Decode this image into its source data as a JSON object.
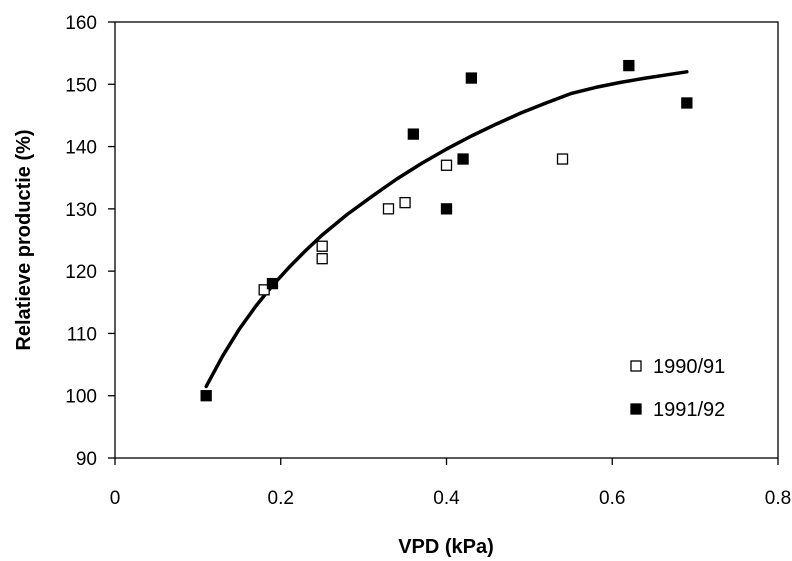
{
  "chart_data": {
    "type": "scatter",
    "xlabel": "VPD (kPa)",
    "ylabel": "Relatieve productie (%)",
    "xlim": [
      0,
      0.8
    ],
    "ylim": [
      90,
      160
    ],
    "x_ticks": [
      0,
      0.2,
      0.4,
      0.6,
      0.8
    ],
    "x_tick_labels": [
      "0",
      "0.2",
      "0.4",
      "0.6",
      "0.8"
    ],
    "y_ticks": [
      90,
      100,
      110,
      120,
      130,
      140,
      150,
      160
    ],
    "y_tick_labels": [
      "90",
      "100",
      "110",
      "120",
      "130",
      "140",
      "150",
      "160"
    ],
    "grid": false,
    "legend_position": "bottom-right",
    "series": [
      {
        "name": "1990/91",
        "marker": "open-square",
        "color": "#000000",
        "x": [
          0.18,
          0.25,
          0.25,
          0.33,
          0.35,
          0.4,
          0.54
        ],
        "y": [
          117,
          122,
          124,
          130,
          131,
          137,
          138
        ]
      },
      {
        "name": "1991/92",
        "marker": "filled-square",
        "color": "#000000",
        "x": [
          0.11,
          0.19,
          0.36,
          0.4,
          0.42,
          0.43,
          0.62,
          0.69
        ],
        "y": [
          100,
          118,
          142,
          130,
          138,
          151,
          153,
          147
        ]
      }
    ],
    "trend_line": {
      "type": "fitted-curve",
      "color": "#000000",
      "x": [
        0.11,
        0.13,
        0.15,
        0.17,
        0.19,
        0.21,
        0.23,
        0.25,
        0.28,
        0.31,
        0.34,
        0.37,
        0.4,
        0.43,
        0.46,
        0.49,
        0.52,
        0.55,
        0.58,
        0.61,
        0.64,
        0.67,
        0.69
      ],
      "y": [
        101.5,
        106.4,
        110.7,
        114.4,
        117.7,
        120.6,
        123.3,
        125.8,
        129.1,
        132.0,
        134.8,
        137.3,
        139.6,
        141.7,
        143.6,
        145.4,
        147.0,
        148.5,
        149.5,
        150.3,
        151.0,
        151.6,
        152.0
      ]
    }
  }
}
